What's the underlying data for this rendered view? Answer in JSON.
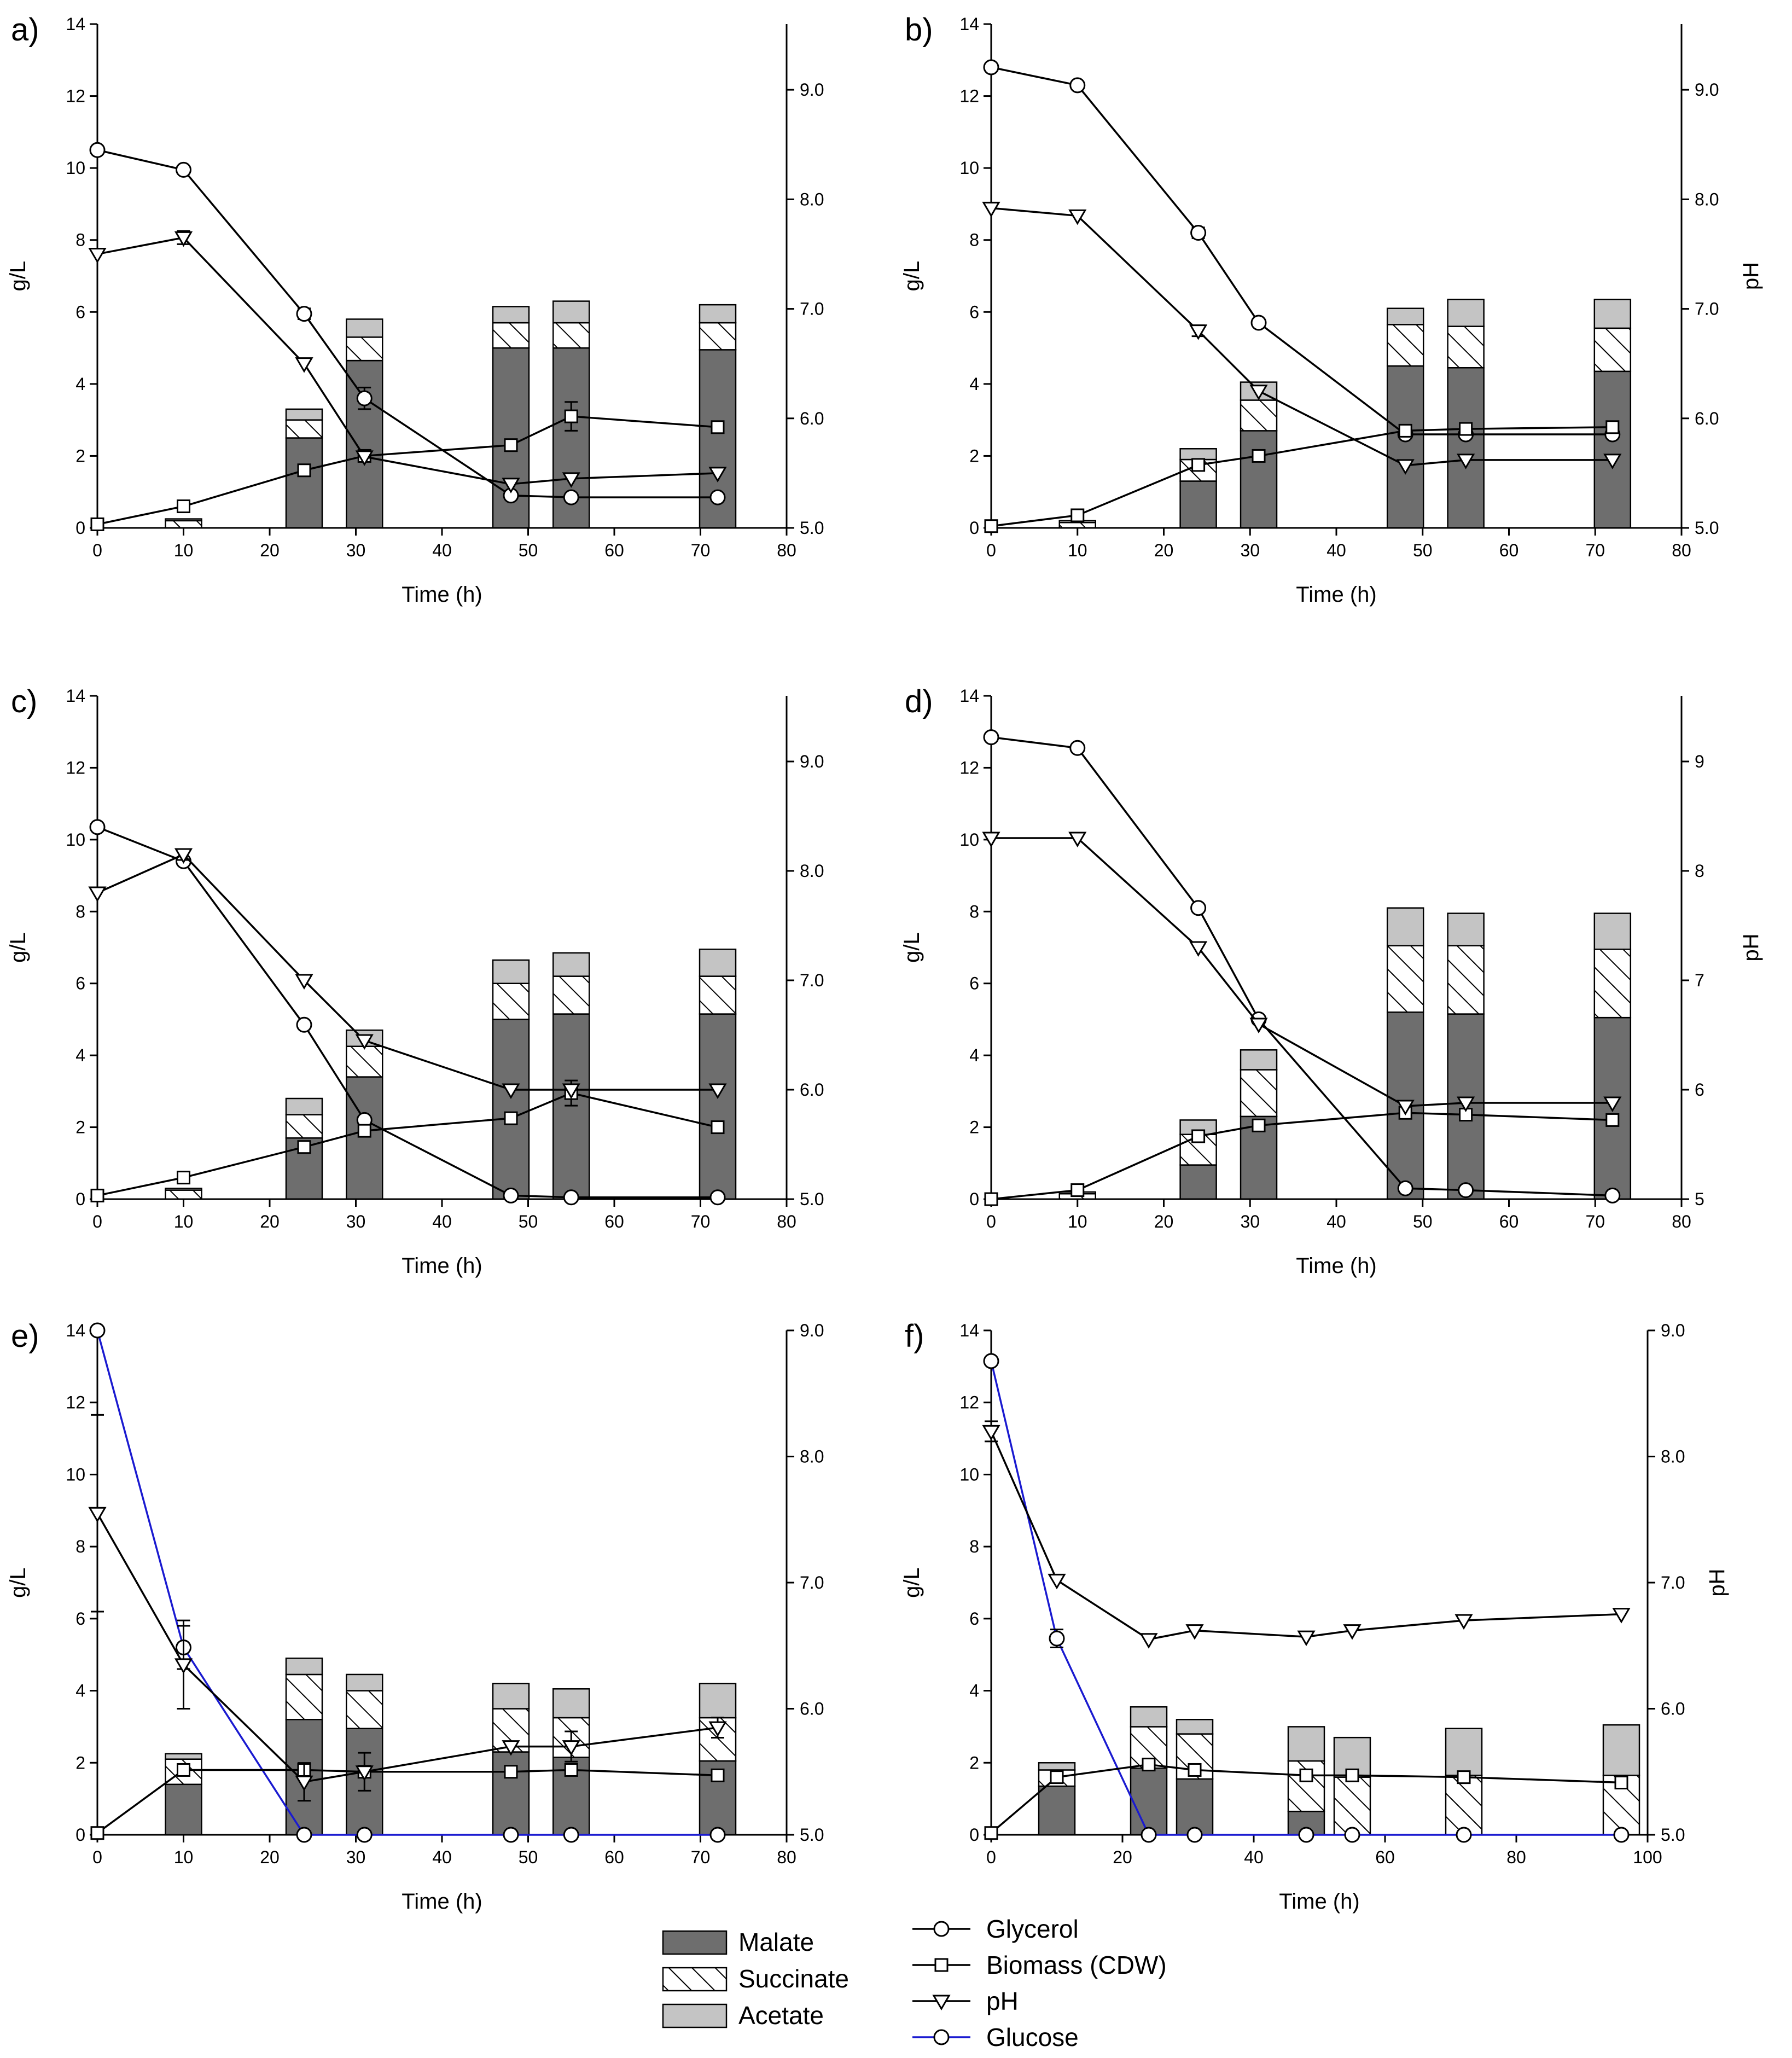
{
  "figure": {
    "legend": {
      "bars": [
        {
          "key": "malate",
          "label": "Malate"
        },
        {
          "key": "succinate",
          "label": "Succinate"
        },
        {
          "key": "acetate",
          "label": "Acetate"
        }
      ],
      "lines": [
        {
          "key": "glycerol",
          "label": "Glycerol",
          "marker": "circle",
          "color": "#000000"
        },
        {
          "key": "biomass",
          "label": "Biomass (CDW)",
          "marker": "square",
          "color": "#000000"
        },
        {
          "key": "ph",
          "label": "pH",
          "marker": "triangle-down",
          "color": "#000000"
        },
        {
          "key": "glucose",
          "label": "Glucose",
          "marker": "circle",
          "color": "#1a1ad0"
        }
      ]
    },
    "colors": {
      "malate": "#6e6e6e",
      "acetate": "#c4c4c4",
      "line": "#000000",
      "glucose": "#1a1ad0"
    }
  },
  "chart_data": [
    {
      "panel": "a)",
      "type": "bar+line",
      "xlabel": "Time (h)",
      "ylabel": "g/L",
      "y2label": "",
      "xlim": [
        0,
        80
      ],
      "xticks": [
        0,
        10,
        20,
        30,
        40,
        50,
        60,
        70,
        80
      ],
      "ylim": [
        0,
        14
      ],
      "yticks": [
        0,
        2,
        4,
        6,
        8,
        10,
        12,
        14
      ],
      "y2lim": [
        5.0,
        9.6
      ],
      "y2ticks": [
        5.0,
        6.0,
        7.0,
        8.0,
        9.0
      ],
      "y2ticklabels": [
        "5.0",
        "6.0",
        "7.0",
        "8.0",
        "9.0"
      ],
      "bars": [
        {
          "x": 10,
          "malate": 0.0,
          "succinate": 0.2,
          "acetate": 0.05
        },
        {
          "x": 24,
          "malate": 2.5,
          "succinate": 0.5,
          "acetate": 0.3
        },
        {
          "x": 31,
          "malate": 4.65,
          "succinate": 0.65,
          "acetate": 0.5
        },
        {
          "x": 48,
          "malate": 5.0,
          "succinate": 0.7,
          "acetate": 0.45
        },
        {
          "x": 55,
          "malate": 5.0,
          "succinate": 0.7,
          "acetate": 0.6
        },
        {
          "x": 72,
          "malate": 4.95,
          "succinate": 0.75,
          "acetate": 0.5
        }
      ],
      "lines": [
        {
          "key": "glycerol",
          "x": [
            0,
            10,
            24,
            31,
            48,
            55,
            72
          ],
          "y": [
            10.5,
            9.95,
            5.95,
            3.6,
            0.9,
            0.85,
            0.85
          ],
          "err": [
            0,
            0.1,
            0.15,
            0.3,
            0,
            0,
            0
          ]
        },
        {
          "key": "biomass",
          "x": [
            0,
            10,
            24,
            31,
            48,
            55,
            72
          ],
          "y": [
            0.1,
            0.6,
            1.6,
            2.0,
            2.3,
            3.1,
            2.8
          ],
          "err": [
            0,
            0,
            0,
            0,
            0,
            0.4,
            0
          ]
        },
        {
          "key": "ph",
          "axis": "y2",
          "x": [
            0,
            10,
            24,
            31,
            48,
            55,
            72
          ],
          "y": [
            7.5,
            7.65,
            6.5,
            5.65,
            5.4,
            5.45,
            5.5
          ],
          "err": [
            0,
            0.06,
            0,
            0,
            0,
            0,
            0
          ]
        }
      ]
    },
    {
      "panel": "b)",
      "type": "bar+line",
      "xlabel": "Time (h)",
      "ylabel": "g/L",
      "y2label": "pH",
      "xlim": [
        0,
        80
      ],
      "xticks": [
        0,
        10,
        20,
        30,
        40,
        50,
        60,
        70,
        80
      ],
      "ylim": [
        0,
        14
      ],
      "yticks": [
        0,
        2,
        4,
        6,
        8,
        10,
        12,
        14
      ],
      "y2lim": [
        5.0,
        9.6
      ],
      "y2ticks": [
        5.0,
        6.0,
        7.0,
        8.0,
        9.0
      ],
      "y2ticklabels": [
        "5.0",
        "6.0",
        "7.0",
        "8.0",
        "9.0"
      ],
      "bars": [
        {
          "x": 10,
          "malate": 0.0,
          "succinate": 0.15,
          "acetate": 0.05
        },
        {
          "x": 24,
          "malate": 1.3,
          "succinate": 0.6,
          "acetate": 0.3
        },
        {
          "x": 31,
          "malate": 2.7,
          "succinate": 0.85,
          "acetate": 0.5
        },
        {
          "x": 48,
          "malate": 4.5,
          "succinate": 1.15,
          "acetate": 0.45
        },
        {
          "x": 55,
          "malate": 4.45,
          "succinate": 1.15,
          "acetate": 0.75
        },
        {
          "x": 72,
          "malate": 4.35,
          "succinate": 1.2,
          "acetate": 0.8
        }
      ],
      "lines": [
        {
          "key": "glycerol",
          "x": [
            0,
            10,
            24,
            31,
            48,
            55,
            72
          ],
          "y": [
            12.8,
            12.3,
            8.2,
            5.7,
            2.6,
            2.6,
            2.6
          ],
          "err": [
            0,
            0.1,
            0.15,
            0,
            0,
            0,
            0
          ]
        },
        {
          "key": "biomass",
          "x": [
            0,
            10,
            24,
            31,
            48,
            55,
            72
          ],
          "y": [
            0.05,
            0.35,
            1.75,
            2.0,
            2.7,
            2.75,
            2.8
          ],
          "err": [
            0,
            0,
            0,
            0,
            0,
            0,
            0
          ]
        },
        {
          "key": "ph",
          "axis": "y2",
          "x": [
            0,
            10,
            24,
            31,
            48,
            55,
            72
          ],
          "y": [
            7.92,
            7.85,
            6.8,
            6.25,
            5.57,
            5.62,
            5.62
          ],
          "err": [
            0,
            0,
            0.05,
            0,
            0,
            0,
            0
          ]
        }
      ]
    },
    {
      "panel": "c)",
      "type": "bar+line",
      "xlabel": "Time (h)",
      "ylabel": "g/L",
      "y2label": "",
      "xlim": [
        0,
        80
      ],
      "xticks": [
        0,
        10,
        20,
        30,
        40,
        50,
        60,
        70,
        80
      ],
      "ylim": [
        0,
        14
      ],
      "yticks": [
        0,
        2,
        4,
        6,
        8,
        10,
        12,
        14
      ],
      "y2lim": [
        5.0,
        9.6
      ],
      "y2ticks": [
        5.0,
        6.0,
        7.0,
        8.0,
        9.0
      ],
      "y2ticklabels": [
        "5.0",
        "6.0",
        "7.0",
        "8.0",
        "9.0"
      ],
      "bars": [
        {
          "x": 10,
          "malate": 0.0,
          "succinate": 0.25,
          "acetate": 0.05
        },
        {
          "x": 24,
          "malate": 1.7,
          "succinate": 0.65,
          "acetate": 0.45
        },
        {
          "x": 31,
          "malate": 3.4,
          "succinate": 0.85,
          "acetate": 0.45
        },
        {
          "x": 48,
          "malate": 5.0,
          "succinate": 1.0,
          "acetate": 0.65
        },
        {
          "x": 55,
          "malate": 5.15,
          "succinate": 1.05,
          "acetate": 0.65
        },
        {
          "x": 72,
          "malate": 5.15,
          "succinate": 1.05,
          "acetate": 0.75
        }
      ],
      "lines": [
        {
          "key": "glycerol",
          "x": [
            0,
            10,
            24,
            31,
            48,
            55,
            72
          ],
          "y": [
            10.35,
            9.4,
            4.85,
            2.2,
            0.1,
            0.05,
            0.05
          ],
          "err": [
            0,
            0,
            0,
            0,
            0,
            0,
            0
          ]
        },
        {
          "key": "biomass",
          "x": [
            0,
            10,
            24,
            31,
            48,
            55,
            72
          ],
          "y": [
            0.1,
            0.6,
            1.45,
            1.9,
            2.25,
            2.95,
            2.0
          ],
          "err": [
            0,
            0,
            0,
            0,
            0,
            0.35,
            0.15
          ]
        },
        {
          "key": "ph",
          "axis": "y2",
          "x": [
            0,
            10,
            24,
            31,
            48,
            55,
            72
          ],
          "y": [
            7.8,
            8.15,
            7.0,
            6.45,
            6.0,
            6.0,
            6.0
          ],
          "err": [
            0,
            0.05,
            0,
            0,
            0,
            0,
            0
          ]
        }
      ]
    },
    {
      "panel": "d)",
      "type": "bar+line",
      "xlabel": "Time (h)",
      "ylabel": "g/L",
      "y2label": "pH",
      "xlim": [
        0,
        80
      ],
      "xticks": [
        0,
        10,
        20,
        30,
        40,
        50,
        60,
        70,
        80
      ],
      "ylim": [
        0,
        14
      ],
      "yticks": [
        0,
        2,
        4,
        6,
        8,
        10,
        12,
        14
      ],
      "y2lim": [
        5.0,
        9.6
      ],
      "y2ticks": [
        5,
        6,
        7,
        8,
        9
      ],
      "y2ticklabels": [
        "5",
        "6",
        "7",
        "8",
        "9"
      ],
      "bars": [
        {
          "x": 10,
          "malate": 0.0,
          "succinate": 0.15,
          "acetate": 0.05
        },
        {
          "x": 24,
          "malate": 0.95,
          "succinate": 0.85,
          "acetate": 0.4
        },
        {
          "x": 31,
          "malate": 2.3,
          "succinate": 1.3,
          "acetate": 0.55
        },
        {
          "x": 48,
          "malate": 5.2,
          "succinate": 1.85,
          "acetate": 1.05
        },
        {
          "x": 55,
          "malate": 5.15,
          "succinate": 1.9,
          "acetate": 0.9
        },
        {
          "x": 72,
          "malate": 5.05,
          "succinate": 1.9,
          "acetate": 1.0
        }
      ],
      "lines": [
        {
          "key": "glycerol",
          "x": [
            0,
            10,
            24,
            31,
            48,
            55,
            72
          ],
          "y": [
            12.85,
            12.55,
            8.1,
            5.0,
            0.3,
            0.25,
            0.1
          ],
          "err": [
            0,
            0,
            0,
            0,
            0,
            0,
            0
          ]
        },
        {
          "key": "biomass",
          "x": [
            0,
            10,
            24,
            31,
            48,
            55,
            72
          ],
          "y": [
            0.0,
            0.25,
            1.75,
            2.05,
            2.4,
            2.35,
            2.2
          ],
          "err": [
            0,
            0,
            0,
            0,
            0,
            0,
            0
          ]
        },
        {
          "key": "ph",
          "axis": "y2",
          "x": [
            0,
            10,
            24,
            31,
            48,
            55,
            72
          ],
          "y": [
            8.3,
            8.3,
            7.3,
            6.6,
            5.85,
            5.88,
            5.88
          ],
          "err": [
            0,
            0,
            0,
            0,
            0,
            0,
            0
          ]
        }
      ]
    },
    {
      "panel": "e)",
      "type": "bar+line",
      "xlabel": "Time (h)",
      "ylabel": "g/L",
      "y2label": "",
      "xlim": [
        0,
        80
      ],
      "xticks": [
        0,
        10,
        20,
        30,
        40,
        50,
        60,
        70,
        80
      ],
      "ylim": [
        0,
        14
      ],
      "yticks": [
        0,
        2,
        4,
        6,
        8,
        10,
        12,
        14
      ],
      "y2lim": [
        5.0,
        9.0
      ],
      "y2ticks": [
        5.0,
        6.0,
        7.0,
        8.0,
        9.0
      ],
      "y2ticklabels": [
        "5.0",
        "6.0",
        "7.0",
        "8.0",
        "9.0"
      ],
      "bars": [
        {
          "x": 10,
          "malate": 1.4,
          "succinate": 0.7,
          "acetate": 0.15
        },
        {
          "x": 24,
          "malate": 3.2,
          "succinate": 1.25,
          "acetate": 0.45
        },
        {
          "x": 31,
          "malate": 2.95,
          "succinate": 1.05,
          "acetate": 0.45
        },
        {
          "x": 48,
          "malate": 2.3,
          "succinate": 1.2,
          "acetate": 0.7
        },
        {
          "x": 55,
          "malate": 2.15,
          "succinate": 1.1,
          "acetate": 0.8
        },
        {
          "x": 72,
          "malate": 2.05,
          "succinate": 1.2,
          "acetate": 0.95
        }
      ],
      "lines": [
        {
          "key": "glucose",
          "x": [
            0,
            10,
            24,
            31,
            48,
            55,
            72
          ],
          "y": [
            14.0,
            5.2,
            0.0,
            0.0,
            0.0,
            0.0,
            0.0
          ],
          "err": [
            0,
            0.6,
            0,
            0,
            0,
            0,
            0
          ]
        },
        {
          "key": "biomass",
          "x": [
            0,
            10,
            24,
            31,
            48,
            55,
            72
          ],
          "y": [
            0.05,
            1.8,
            1.8,
            1.75,
            1.75,
            1.8,
            1.65
          ],
          "err": [
            0,
            0,
            0,
            0,
            0,
            0,
            0
          ]
        },
        {
          "key": "ph",
          "axis": "y2",
          "x": [
            0,
            10,
            24,
            31,
            48,
            55,
            72
          ],
          "y": [
            7.55,
            6.35,
            5.42,
            5.5,
            5.7,
            5.7,
            5.85
          ],
          "err": [
            0.78,
            0.35,
            0.15,
            0.15,
            0,
            0.12,
            0.08
          ]
        }
      ]
    },
    {
      "panel": "f)",
      "type": "bar+line",
      "xlabel": "Time (h)",
      "ylabel": "g/L",
      "y2label": "pH",
      "xlim": [
        0,
        100
      ],
      "xticks": [
        0,
        20,
        40,
        60,
        80,
        100
      ],
      "ylim": [
        0,
        14
      ],
      "yticks": [
        0,
        2,
        4,
        6,
        8,
        10,
        12,
        14
      ],
      "y2lim": [
        5.0,
        9.0
      ],
      "y2ticks": [
        5.0,
        6.0,
        7.0,
        8.0,
        9.0
      ],
      "y2ticklabels": [
        "5.0",
        "6.0",
        "7.0",
        "8.0",
        "9.0"
      ],
      "bars": [
        {
          "x": 10,
          "malate": 1.35,
          "succinate": 0.45,
          "acetate": 0.2
        },
        {
          "x": 24,
          "malate": 1.85,
          "succinate": 1.15,
          "acetate": 0.55
        },
        {
          "x": 31,
          "malate": 1.55,
          "succinate": 1.25,
          "acetate": 0.4
        },
        {
          "x": 48,
          "malate": 0.65,
          "succinate": 1.4,
          "acetate": 0.95
        },
        {
          "x": 55,
          "malate": 0.0,
          "succinate": 1.6,
          "acetate": 1.1
        },
        {
          "x": 72,
          "malate": 0.0,
          "succinate": 1.65,
          "acetate": 1.3
        },
        {
          "x": 96,
          "malate": 0.0,
          "succinate": 1.65,
          "acetate": 1.4
        }
      ],
      "lines": [
        {
          "key": "glucose",
          "x": [
            0,
            10,
            24,
            31,
            48,
            55,
            72,
            96
          ],
          "y": [
            13.15,
            5.45,
            0.0,
            0.0,
            0.0,
            0.0,
            0.0,
            0.0
          ],
          "err": [
            0,
            0.25,
            0,
            0,
            0,
            0,
            0,
            0
          ]
        },
        {
          "key": "biomass",
          "x": [
            0,
            10,
            24,
            31,
            48,
            55,
            72,
            96
          ],
          "y": [
            0.05,
            1.6,
            1.95,
            1.8,
            1.65,
            1.65,
            1.6,
            1.45
          ],
          "err": [
            0,
            0,
            0,
            0,
            0,
            0,
            0,
            0
          ]
        },
        {
          "key": "ph",
          "axis": "y2",
          "x": [
            0,
            10,
            24,
            31,
            48,
            55,
            72,
            96
          ],
          "y": [
            8.2,
            7.02,
            6.55,
            6.62,
            6.57,
            6.62,
            6.7,
            6.75
          ],
          "err": [
            0.08,
            0,
            0,
            0,
            0,
            0,
            0,
            0
          ]
        }
      ]
    }
  ]
}
